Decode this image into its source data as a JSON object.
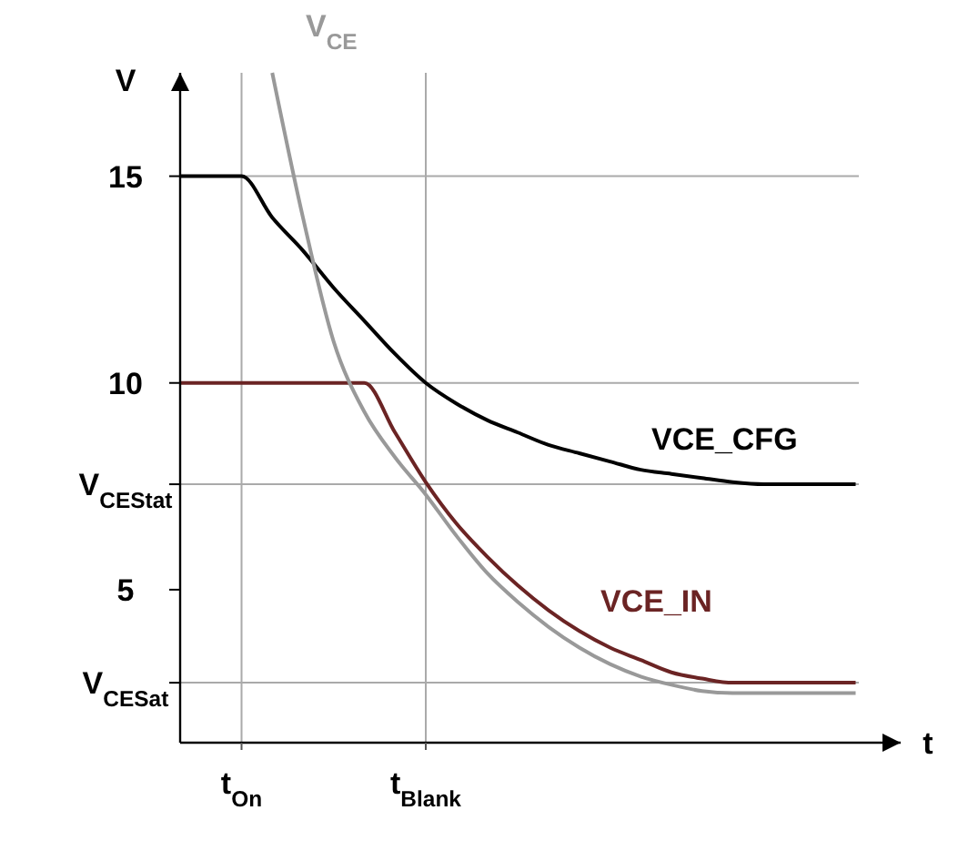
{
  "chart_data": {
    "type": "line",
    "xlabel": "t",
    "ylabel": "V",
    "ylim": [
      1.3,
      17.5
    ],
    "categories": [
      null,
      null,
      "t$_{On}$",
      null,
      null,
      null,
      null,
      null,
      "t$_{Blank}$",
      null,
      null,
      null,
      null,
      null,
      null,
      null,
      null,
      null,
      null,
      null,
      null,
      null,
      null,
      null
    ],
    "yticks": [
      {
        "value": 2.75,
        "label": "V$_{CESat}$"
      },
      5,
      {
        "value": 7.55,
        "label": "V$_{CEStat}$"
      },
      10,
      15
    ],
    "ref_lines": [
      {
        "axis": "y",
        "value": 15,
        "color": "#aaaaaa"
      },
      {
        "axis": "y",
        "value": 10,
        "color": "#aaaaaa"
      },
      {
        "axis": "y",
        "value": 7.55,
        "color": "#aaaaaa"
      },
      {
        "axis": "y",
        "value": 2.75,
        "color": "#aaaaaa"
      },
      {
        "axis": "x",
        "value": "t$_{On}$",
        "color": "#aaaaaa"
      },
      {
        "axis": "x",
        "value": "t$_{Blank}$",
        "color": "#aaaaaa"
      }
    ],
    "series": [
      {
        "name": "VCE_CFG",
        "color": "#000000",
        "values": [
          15,
          15,
          15,
          14.0,
          13.2,
          12.3,
          11.5,
          10.7,
          10.0,
          9.5,
          9.1,
          8.8,
          8.5,
          8.3,
          8.1,
          7.9,
          7.8,
          7.7,
          7.6,
          7.55,
          7.55,
          7.55,
          7.55,
          null
        ]
      },
      {
        "name": "VCE_IN",
        "color": "#6b2424",
        "values": [
          10,
          10,
          10,
          10,
          10,
          10,
          10,
          8.8,
          7.6,
          6.6,
          5.8,
          5.1,
          4.5,
          4.0,
          3.6,
          3.3,
          3.0,
          2.85,
          2.75,
          2.75,
          2.75,
          2.75,
          2.75,
          null
        ]
      },
      {
        "name": "V$_{CE}$",
        "color": "#999999",
        "values": [
          null,
          null,
          null,
          17.5,
          14.0,
          11.0,
          9.3,
          8.2,
          7.3,
          6.3,
          5.4,
          4.7,
          4.1,
          3.6,
          3.2,
          2.9,
          2.7,
          2.55,
          2.5,
          2.5,
          2.5,
          2.5,
          2.5,
          null
        ]
      }
    ]
  }
}
